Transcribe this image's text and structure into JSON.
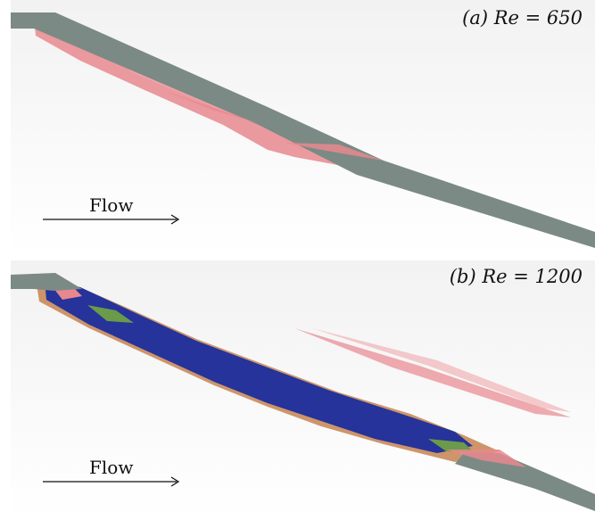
{
  "panels": [
    {
      "label": "(a) Re = 650",
      "flow_label": "Flow"
    },
    {
      "label": "(b) Re = 1200",
      "flow_label": "Flow"
    }
  ],
  "colors": {
    "background_gradient": [
      "#f3f3f3",
      "#ffffff"
    ],
    "ribbon": "#7b8a84",
    "surface_red": "#e8888e",
    "surface_blue": "#25339a",
    "surface_green": "#6a9a4a",
    "surface_orange": "#c98a5a"
  }
}
